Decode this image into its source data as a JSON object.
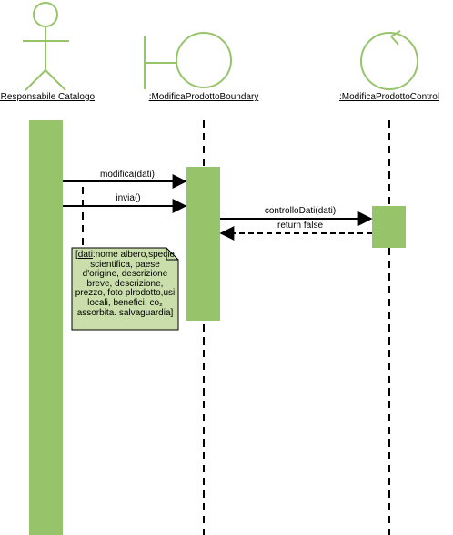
{
  "colors": {
    "accent": "#97c46b",
    "accent_light": "#c9deaa",
    "stroke": "#000000",
    "background": "#ffffff"
  },
  "participants": {
    "actor": {
      "label": ":Responsabile Catalogo",
      "shape": "actor-icon"
    },
    "boundary": {
      "label": ":ModificaProdottoBoundary",
      "shape": "boundary-icon"
    },
    "control": {
      "label": ":ModificaProdottoControl",
      "shape": "control-icon"
    }
  },
  "messages": [
    {
      "label": "modifica(dati)",
      "type": "sync"
    },
    {
      "label": "invia()",
      "type": "sync"
    },
    {
      "label": "controlloDati(dati)",
      "type": "sync"
    },
    {
      "label": "return false",
      "type": "return"
    }
  ],
  "note": {
    "underlined": "dati",
    "prefix": "[",
    "text": ":nome albero,specie scientifica, paese d'origine, descrizione breve, descrizione, prezzo, foto plrodotto,usi locali, benefici, co₂ assorbita. salvaguardia]"
  }
}
